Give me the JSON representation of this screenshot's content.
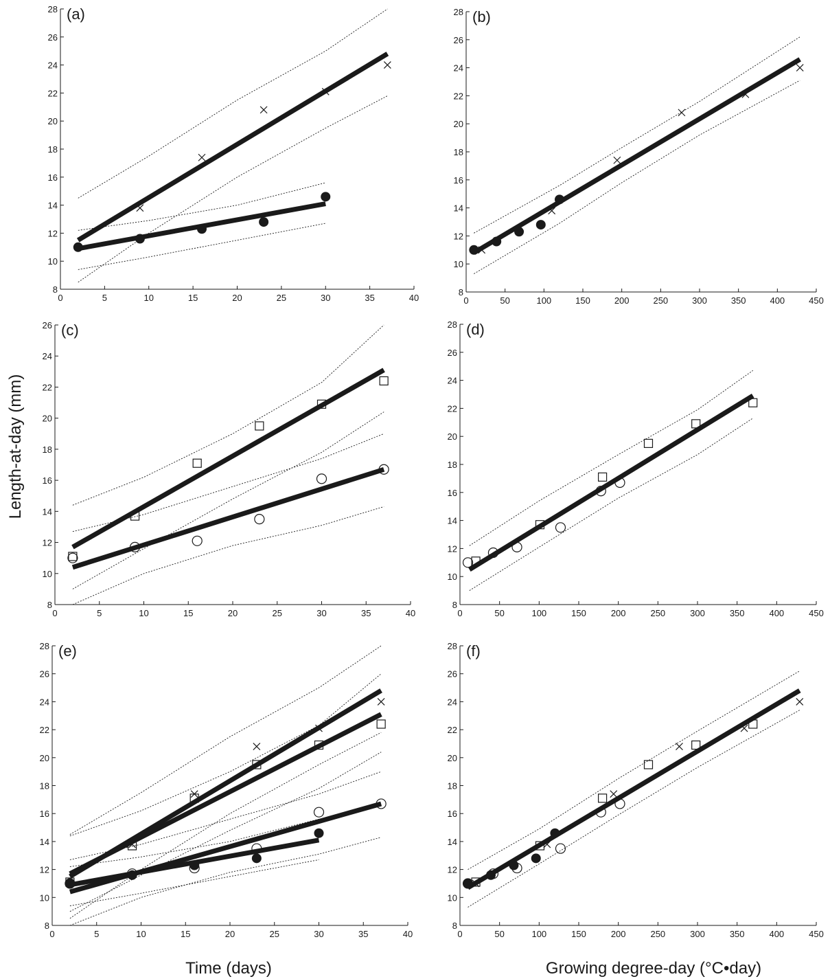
{
  "figure": {
    "ylabel": "Length-at-day (mm)",
    "xlabel_time": "Time (days)",
    "xlabel_gdd": "Growing degree-day (°C•day)"
  },
  "colors": {
    "ink": "#1a1a1a",
    "background": "#ffffff"
  },
  "chart_data": [
    {
      "type": "scatter",
      "label": "(a)",
      "xlim": [
        0,
        40
      ],
      "ylim": [
        8,
        28
      ],
      "xticks": [
        "0",
        "5",
        "10",
        "15",
        "20",
        "25",
        "30",
        "35",
        "40"
      ],
      "yticks": [
        "8",
        "10",
        "12",
        "14",
        "16",
        "18",
        "20",
        "22",
        "24",
        "26",
        "28"
      ],
      "series": [
        {
          "marker": "cross",
          "x": [
            9,
            16,
            23,
            30,
            37
          ],
          "y": [
            13.8,
            17.4,
            20.8,
            22.1,
            24.0
          ]
        },
        {
          "marker": "filled-circle",
          "x": [
            2,
            9,
            16,
            23,
            30
          ],
          "y": [
            11.0,
            11.6,
            12.3,
            12.8,
            14.6
          ]
        }
      ],
      "fits": [
        {
          "x": [
            2,
            37
          ],
          "y": [
            11.5,
            24.8
          ],
          "ci_upper": [
            [
              2,
              14.5
            ],
            [
              10,
              17.5
            ],
            [
              20,
              21.5
            ],
            [
              30,
              25.0
            ],
            [
              37,
              28.0
            ]
          ],
          "ci_lower": [
            [
              2,
              8.5
            ],
            [
              10,
              12.0
            ],
            [
              20,
              16.0
            ],
            [
              30,
              19.5
            ],
            [
              37,
              21.8
            ]
          ]
        },
        {
          "x": [
            2,
            30
          ],
          "y": [
            10.9,
            14.1
          ],
          "ci_upper": [
            [
              2,
              12.2
            ],
            [
              10,
              12.9
            ],
            [
              20,
              14.0
            ],
            [
              30,
              15.6
            ]
          ],
          "ci_lower": [
            [
              2,
              9.4
            ],
            [
              10,
              10.3
            ],
            [
              20,
              11.5
            ],
            [
              30,
              12.7
            ]
          ]
        }
      ]
    },
    {
      "type": "scatter",
      "label": "(b)",
      "xlim": [
        0,
        450
      ],
      "ylim": [
        8,
        28
      ],
      "xticks": [
        "0",
        "50",
        "100",
        "150",
        "200",
        "250",
        "300",
        "350",
        "400",
        "450"
      ],
      "yticks": [
        "8",
        "10",
        "12",
        "14",
        "16",
        "18",
        "20",
        "22",
        "24",
        "26",
        "28"
      ],
      "series": [
        {
          "marker": "cross",
          "x": [
            20,
            110,
            194,
            277,
            359,
            429
          ],
          "y": [
            11.0,
            13.8,
            17.4,
            20.8,
            22.1,
            24.0
          ]
        },
        {
          "marker": "filled-circle",
          "x": [
            10,
            39,
            68,
            96,
            120
          ],
          "y": [
            11.0,
            11.6,
            12.3,
            12.8,
            14.6
          ]
        }
      ],
      "fits": [
        {
          "x": [
            10,
            429
          ],
          "y": [
            10.8,
            24.6
          ],
          "ci_upper": [
            [
              10,
              12.2
            ],
            [
              120,
              15.6
            ],
            [
              200,
              18.3
            ],
            [
              300,
              21.6
            ],
            [
              429,
              26.2
            ]
          ],
          "ci_lower": [
            [
              10,
              9.3
            ],
            [
              120,
              12.9
            ],
            [
              200,
              15.8
            ],
            [
              300,
              19.2
            ],
            [
              429,
              23.1
            ]
          ]
        }
      ]
    },
    {
      "type": "scatter",
      "label": "(c)",
      "xlim": [
        0,
        40
      ],
      "ylim": [
        8,
        26
      ],
      "xticks": [
        "0",
        "5",
        "10",
        "15",
        "20",
        "25",
        "30",
        "35",
        "40"
      ],
      "yticks": [
        "8",
        "10",
        "12",
        "14",
        "16",
        "18",
        "20",
        "22",
        "24",
        "26"
      ],
      "series": [
        {
          "marker": "open-square",
          "x": [
            2,
            9,
            16,
            23,
            30,
            37
          ],
          "y": [
            11.1,
            13.7,
            17.1,
            19.5,
            20.9,
            22.4
          ]
        },
        {
          "marker": "open-circle",
          "x": [
            2,
            9,
            16,
            23,
            30,
            37
          ],
          "y": [
            11.0,
            11.7,
            12.1,
            13.5,
            16.1,
            16.7
          ]
        }
      ],
      "fits": [
        {
          "x": [
            2,
            37
          ],
          "y": [
            11.7,
            23.1
          ],
          "ci_upper": [
            [
              2,
              14.4
            ],
            [
              10,
              16.2
            ],
            [
              20,
              19.0
            ],
            [
              30,
              22.3
            ],
            [
              37,
              26.0
            ]
          ],
          "ci_lower": [
            [
              2,
              9.0
            ],
            [
              10,
              11.6
            ],
            [
              20,
              14.8
            ],
            [
              30,
              17.8
            ],
            [
              37,
              20.4
            ]
          ]
        },
        {
          "x": [
            2,
            37
          ],
          "y": [
            10.4,
            16.7
          ],
          "ci_upper": [
            [
              2,
              12.7
            ],
            [
              10,
              13.8
            ],
            [
              20,
              15.6
            ],
            [
              30,
              17.4
            ],
            [
              37,
              19.0
            ]
          ],
          "ci_lower": [
            [
              2,
              8.0
            ],
            [
              10,
              10.0
            ],
            [
              20,
              11.8
            ],
            [
              30,
              13.1
            ],
            [
              37,
              14.3
            ]
          ]
        }
      ]
    },
    {
      "type": "scatter",
      "label": "(d)",
      "xlim": [
        0,
        450
      ],
      "ylim": [
        8,
        28
      ],
      "xticks": [
        "0",
        "50",
        "100",
        "150",
        "200",
        "250",
        "300",
        "350",
        "400",
        "450"
      ],
      "yticks": [
        "8",
        "10",
        "12",
        "14",
        "16",
        "18",
        "20",
        "22",
        "24",
        "26",
        "28"
      ],
      "series": [
        {
          "marker": "open-square",
          "x": [
            20,
            101,
            180,
            238,
            298,
            370
          ],
          "y": [
            11.1,
            13.7,
            17.1,
            19.5,
            20.9,
            22.4
          ]
        },
        {
          "marker": "open-circle",
          "x": [
            10,
            42,
            72,
            127,
            178,
            202
          ],
          "y": [
            11.0,
            11.7,
            12.1,
            13.5,
            16.1,
            16.7
          ]
        }
      ],
      "fits": [
        {
          "x": [
            12,
            370
          ],
          "y": [
            10.5,
            22.9
          ],
          "ci_upper": [
            [
              12,
              12.2
            ],
            [
              100,
              15.4
            ],
            [
              200,
              18.7
            ],
            [
              300,
              21.9
            ],
            [
              370,
              24.7
            ]
          ],
          "ci_lower": [
            [
              12,
              9.0
            ],
            [
              100,
              12.1
            ],
            [
              200,
              15.6
            ],
            [
              300,
              18.7
            ],
            [
              370,
              21.3
            ]
          ]
        }
      ]
    },
    {
      "type": "scatter",
      "label": "(e)",
      "xlim": [
        0,
        40
      ],
      "ylim": [
        8,
        28
      ],
      "xticks": [
        "0",
        "5",
        "10",
        "15",
        "20",
        "25",
        "30",
        "35",
        "40"
      ],
      "yticks": [
        "8",
        "10",
        "12",
        "14",
        "16",
        "18",
        "20",
        "22",
        "24",
        "26",
        "28"
      ],
      "series": [
        {
          "marker": "cross",
          "x": [
            9,
            16,
            23,
            30,
            37
          ],
          "y": [
            13.8,
            17.4,
            20.8,
            22.1,
            24.0
          ]
        },
        {
          "marker": "open-square",
          "x": [
            2,
            9,
            16,
            23,
            30,
            37
          ],
          "y": [
            11.1,
            13.7,
            17.1,
            19.5,
            20.9,
            22.4
          ]
        },
        {
          "marker": "open-circle",
          "x": [
            2,
            9,
            16,
            23,
            30,
            37
          ],
          "y": [
            11.0,
            11.7,
            12.1,
            13.5,
            16.1,
            16.7
          ]
        },
        {
          "marker": "filled-circle",
          "x": [
            2,
            9,
            16,
            23,
            30
          ],
          "y": [
            11.0,
            11.6,
            12.3,
            12.8,
            14.6
          ]
        }
      ],
      "fits": [
        {
          "x": [
            2,
            37
          ],
          "y": [
            11.5,
            24.8
          ],
          "ci_upper": [
            [
              2,
              14.5
            ],
            [
              10,
              17.5
            ],
            [
              20,
              21.5
            ],
            [
              30,
              25.0
            ],
            [
              37,
              28.0
            ]
          ],
          "ci_lower": [
            [
              2,
              8.5
            ],
            [
              10,
              12.0
            ],
            [
              20,
              16.0
            ],
            [
              30,
              19.5
            ],
            [
              37,
              21.8
            ]
          ]
        },
        {
          "x": [
            2,
            37
          ],
          "y": [
            11.7,
            23.1
          ],
          "ci_upper": [
            [
              2,
              14.4
            ],
            [
              10,
              16.2
            ],
            [
              20,
              19.0
            ],
            [
              30,
              22.3
            ],
            [
              37,
              26.0
            ]
          ],
          "ci_lower": [
            [
              2,
              9.0
            ],
            [
              10,
              11.6
            ],
            [
              20,
              14.8
            ],
            [
              30,
              17.8
            ],
            [
              37,
              20.4
            ]
          ]
        },
        {
          "x": [
            2,
            37
          ],
          "y": [
            10.4,
            16.7
          ],
          "ci_upper": [
            [
              2,
              12.7
            ],
            [
              10,
              13.8
            ],
            [
              20,
              15.6
            ],
            [
              30,
              17.4
            ],
            [
              37,
              19.0
            ]
          ],
          "ci_lower": [
            [
              2,
              8.0
            ],
            [
              10,
              10.0
            ],
            [
              20,
              11.8
            ],
            [
              30,
              13.1
            ],
            [
              37,
              14.3
            ]
          ]
        },
        {
          "x": [
            2,
            30
          ],
          "y": [
            10.9,
            14.1
          ],
          "ci_upper": [
            [
              2,
              12.2
            ],
            [
              10,
              12.9
            ],
            [
              20,
              14.0
            ],
            [
              30,
              15.6
            ]
          ],
          "ci_lower": [
            [
              2,
              9.4
            ],
            [
              10,
              10.3
            ],
            [
              20,
              11.5
            ],
            [
              30,
              12.7
            ]
          ]
        }
      ]
    },
    {
      "type": "scatter",
      "label": "(f)",
      "xlim": [
        0,
        450
      ],
      "ylim": [
        8,
        28
      ],
      "xticks": [
        "0",
        "50",
        "100",
        "150",
        "200",
        "250",
        "300",
        "350",
        "400",
        "450"
      ],
      "yticks": [
        "8",
        "10",
        "12",
        "14",
        "16",
        "18",
        "20",
        "22",
        "24",
        "26",
        "28"
      ],
      "series": [
        {
          "marker": "cross",
          "x": [
            20,
            110,
            194,
            277,
            359,
            429
          ],
          "y": [
            11.0,
            13.8,
            17.4,
            20.8,
            22.1,
            24.0
          ]
        },
        {
          "marker": "open-square",
          "x": [
            20,
            101,
            180,
            238,
            298,
            370
          ],
          "y": [
            11.1,
            13.7,
            17.1,
            19.5,
            20.9,
            22.4
          ]
        },
        {
          "marker": "open-circle",
          "x": [
            10,
            42,
            72,
            127,
            178,
            202
          ],
          "y": [
            11.0,
            11.7,
            12.1,
            13.5,
            16.1,
            16.7
          ]
        },
        {
          "marker": "filled-circle",
          "x": [
            10,
            39,
            68,
            96,
            120
          ],
          "y": [
            11.0,
            11.6,
            12.3,
            12.8,
            14.6
          ]
        }
      ],
      "fits": [
        {
          "x": [
            10,
            429
          ],
          "y": [
            10.7,
            24.8
          ],
          "ci_upper": [
            [
              10,
              12.0
            ],
            [
              100,
              14.9
            ],
            [
              200,
              18.5
            ],
            [
              300,
              21.9
            ],
            [
              429,
              26.2
            ]
          ],
          "ci_lower": [
            [
              10,
              9.3
            ],
            [
              100,
              12.4
            ],
            [
              200,
              15.9
            ],
            [
              300,
              19.3
            ],
            [
              429,
              23.4
            ]
          ]
        }
      ]
    }
  ]
}
